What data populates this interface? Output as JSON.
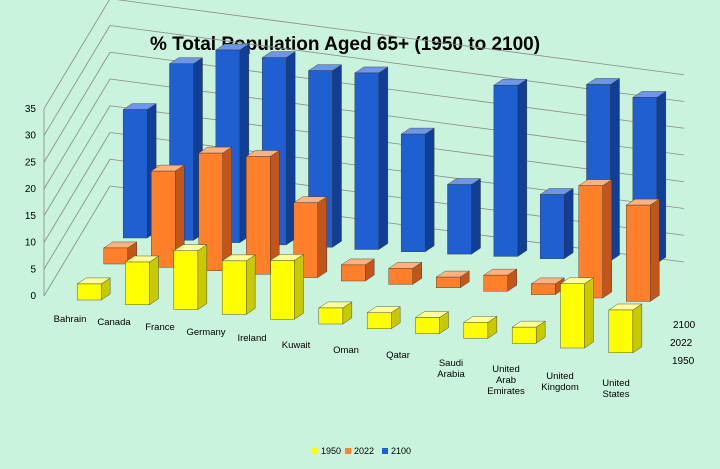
{
  "chart_data": {
    "type": "bar",
    "title": "% Total Population Aged 65+ (1950 to 2100)",
    "categories": [
      "Bahrain",
      "Canada",
      "France",
      "Germany",
      "Ireland",
      "Kuwait",
      "Oman",
      "Qatar",
      "Saudi Arabia",
      "United Arab Emirates",
      "United Kingdom",
      "United States"
    ],
    "series": [
      {
        "name": "1950",
        "color": "#ffff00",
        "values": [
          3,
          8,
          11,
          10,
          11,
          3,
          3,
          3,
          3,
          3,
          12,
          8
        ]
      },
      {
        "name": "2022",
        "color": "#ff7f2a",
        "values": [
          3,
          18,
          22,
          22,
          14,
          3,
          3,
          2,
          3,
          2,
          21,
          18
        ]
      },
      {
        "name": "2100",
        "color": "#1f5fd1",
        "values": [
          24,
          33,
          36,
          35,
          33,
          33,
          22,
          13,
          32,
          12,
          33,
          31
        ]
      }
    ],
    "ylim": [
      0,
      35
    ],
    "yticks": [
      0,
      5,
      10,
      15,
      20,
      25,
      30,
      35
    ],
    "grid": true,
    "legend": "bottom"
  }
}
